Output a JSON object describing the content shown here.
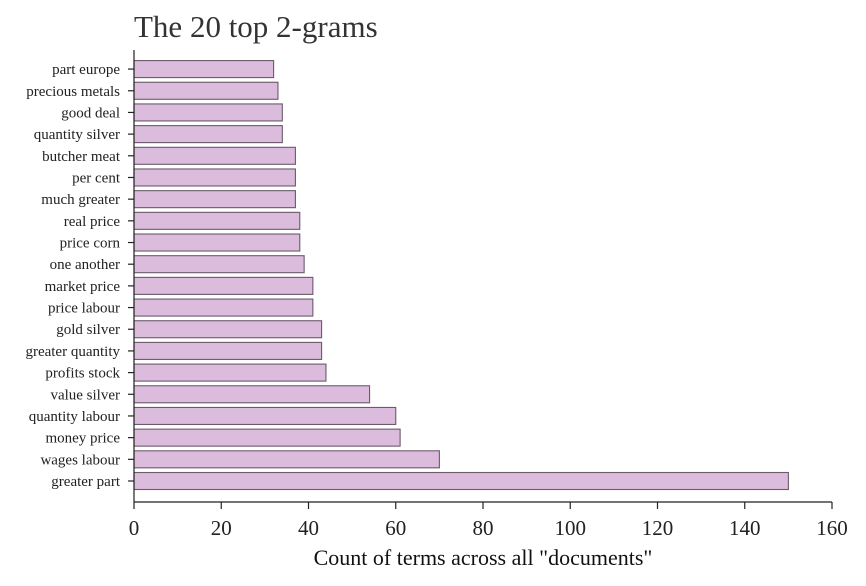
{
  "chart_data": {
    "type": "bar",
    "orientation": "horizontal",
    "title": "The 20 top 2-grams",
    "xlabel": "Count of terms across all \"documents\"",
    "ylabel": "",
    "xlim": [
      0,
      160
    ],
    "xticks": [
      0,
      20,
      40,
      60,
      80,
      100,
      120,
      140,
      160
    ],
    "grid": false,
    "bar_color": "#dcbcdc",
    "bar_edge_color": "#6a5a6a",
    "categories": [
      "greater part",
      "wages labour",
      "money price",
      "quantity labour",
      "value silver",
      "profits stock",
      "greater quantity",
      "gold silver",
      "price labour",
      "market price",
      "one another",
      "price corn",
      "real price",
      "much greater",
      "per cent",
      "butcher meat",
      "quantity silver",
      "good deal",
      "precious metals",
      "part europe"
    ],
    "values": [
      150,
      70,
      61,
      60,
      54,
      44,
      43,
      43,
      41,
      41,
      39,
      38,
      38,
      37,
      37,
      37,
      34,
      34,
      33,
      32
    ]
  }
}
